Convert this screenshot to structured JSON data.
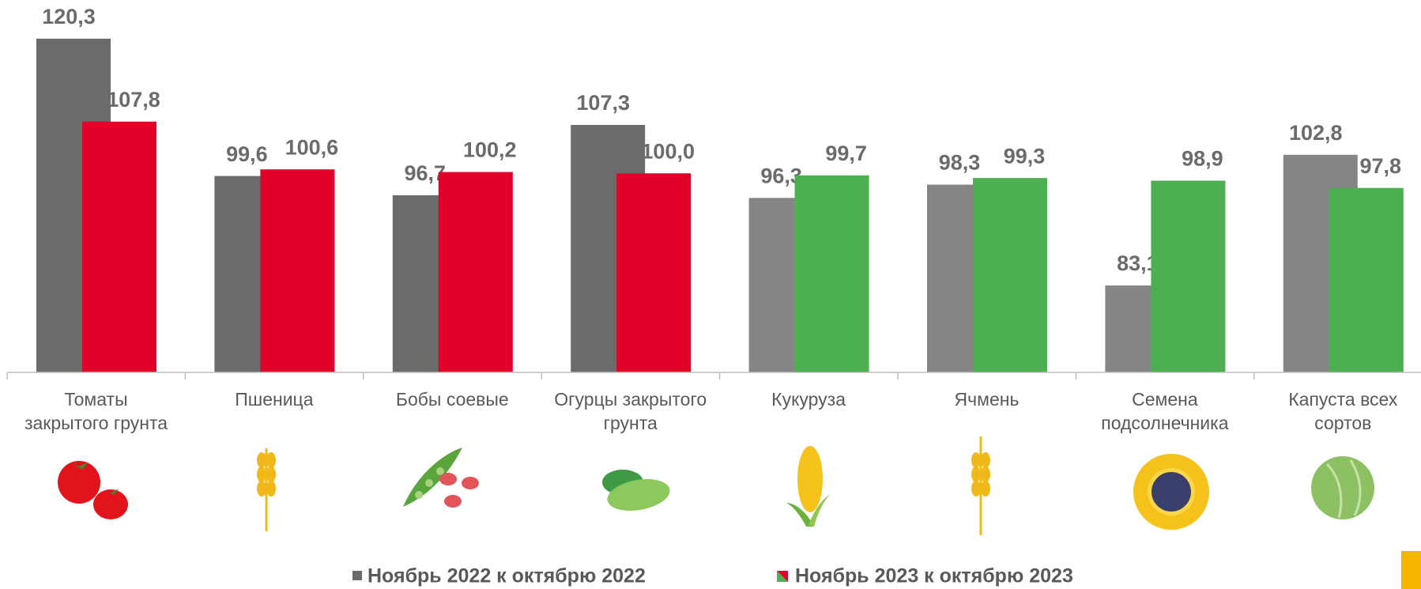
{
  "chart_data": {
    "type": "bar",
    "categories": [
      "Томаты\nзакрытого грунта",
      "Пшеница",
      "Бобы соевые",
      "Огурцы закрытого\nгрунта",
      "Кукуруза",
      "Ячмень",
      "Семена\nподсолнечника",
      "Капуста всех\nсортов"
    ],
    "series": [
      {
        "name": "Ноябрь 2022  к октябрю 2022",
        "colors": [
          "#6b6b6b",
          "#6b6b6b",
          "#6b6b6b",
          "#6b6b6b",
          "#858585",
          "#858585",
          "#858585",
          "#858585"
        ],
        "values": [
          120.3,
          99.6,
          96.7,
          107.3,
          96.3,
          98.3,
          83.1,
          102.8
        ],
        "value_labels": [
          "120,3",
          "99,6",
          "96,7",
          "107,3",
          "96,3",
          "98,3",
          "83,1",
          "102,8"
        ]
      },
      {
        "name": "Ноябрь 2023  к октябрю 2023",
        "colors": [
          "#e0002a",
          "#e0002a",
          "#e0002a",
          "#e0002a",
          "#4caf50",
          "#4caf50",
          "#4caf50",
          "#4caf50"
        ],
        "values": [
          107.8,
          100.6,
          100.2,
          100.0,
          99.7,
          99.3,
          98.9,
          97.8
        ],
        "value_labels": [
          "107,8",
          "100,6",
          "100,2",
          "100,0",
          "99,7",
          "99,3",
          "98,9",
          "97,8"
        ]
      }
    ],
    "ylim": [
      70,
      125
    ]
  }
}
